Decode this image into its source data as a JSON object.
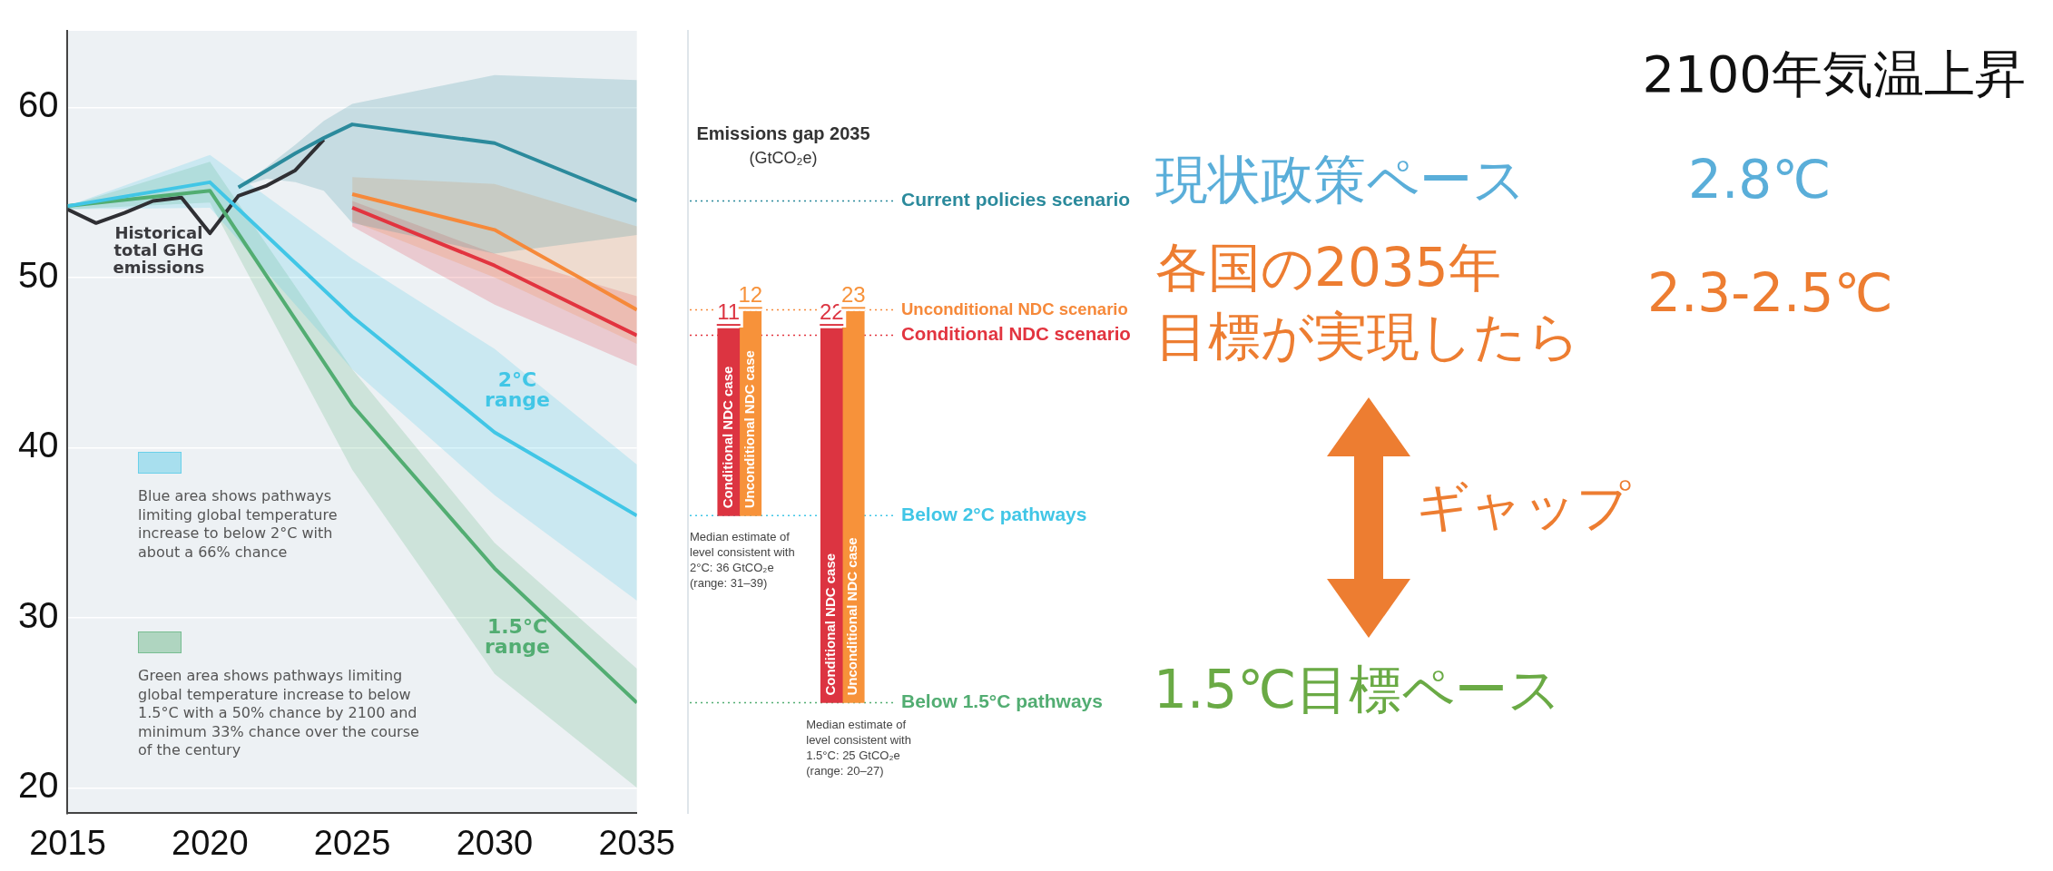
{
  "chart_data": [
    {
      "type": "line",
      "xlim": [
        2015,
        2035
      ],
      "xticks": [
        2015,
        2020,
        2025,
        2030,
        2035
      ],
      "ylim": [
        18.5,
        64.5
      ],
      "yticks": [
        20,
        30,
        40,
        50,
        60
      ],
      "grid": "y",
      "series": [
        {
          "color": "#2b8a9c",
          "x": [
            2021,
            2022,
            2023,
            2024,
            2025,
            2030,
            2035
          ],
          "values": [
            55.3,
            56.3,
            57.3,
            58.2,
            59.0,
            57.9,
            54.5
          ],
          "upper": [
            55.3,
            56.5,
            57.8,
            59.2,
            60.2,
            61.9,
            61.6
          ],
          "lower": [
            55.3,
            55.8,
            55.6,
            55.1,
            53.2,
            51.4,
            52.5
          ]
        },
        {
          "color": "#f6893a",
          "x": [
            2025,
            2030,
            2035
          ],
          "values": [
            54.9,
            52.8,
            48.1
          ],
          "upper": [
            55.9,
            55.5,
            53.0
          ],
          "lower": [
            53.3,
            50.0,
            46.1
          ]
        },
        {
          "color": "#e2343f",
          "x": [
            2025,
            2030,
            2035
          ],
          "values": [
            54.1,
            50.7,
            46.6
          ],
          "upper": [
            54.5,
            51.4,
            48.9
          ],
          "lower": [
            53.0,
            48.4,
            44.8
          ]
        },
        {
          "color": "#41c6e6",
          "x": [
            2015,
            2020,
            2025,
            2030,
            2035
          ],
          "values": [
            54.2,
            55.6,
            47.7,
            40.9,
            36
          ],
          "upper": [
            54.2,
            57.2,
            51.1,
            45.8,
            39
          ],
          "lower": [
            54.0,
            54.1,
            44.6,
            37.2,
            31
          ]
        },
        {
          "color": "#52ad72",
          "x": [
            2015,
            2020,
            2025,
            2030,
            2035
          ],
          "values": [
            54.2,
            55.1,
            42.5,
            32.9,
            25
          ],
          "upper": [
            54.2,
            56.8,
            44.6,
            34.4,
            27
          ],
          "lower": [
            54.0,
            54.4,
            38.7,
            26.7,
            20
          ]
        },
        {
          "color": "#2f2f33",
          "x": [
            2015,
            2016,
            2017,
            2018,
            2019,
            2020,
            2021,
            2022,
            2023,
            2024
          ],
          "values": [
            54.0,
            53.2,
            53.8,
            54.5,
            54.7,
            52.6,
            54.8,
            55.4,
            56.3,
            58.1
          ]
        }
      ],
      "annotations": [
        "Historical\ntotal GHG\nemissions",
        "2°C\nrange",
        "1.5°C\nrange",
        "Blue area shows pathways\nlimiting global temperature\nincrease to below 2°C with\nabout a 66% chance",
        "Green area shows pathways limiting\nglobal temperature increase to below\n1.5°C with a 50% chance by 2100 and\nminimum 33% chance over the course\nof the century"
      ]
    },
    {
      "type": "bar",
      "title": "Emissions gap 2035",
      "subtitle": "(GtCO₂e)",
      "categories": [
        null,
        null
      ],
      "ylim": [
        18.5,
        64.5
      ],
      "tick_labels": false,
      "data_labels": true,
      "series": [
        {
          "name": "Conditional NDC case",
          "color": "#dc3441",
          "values": [
            11,
            22
          ],
          "base": [
            36,
            25
          ]
        },
        {
          "name": "Unconditional NDC case",
          "color": "#f7923a",
          "values": [
            12,
            23
          ],
          "base": [
            36,
            25
          ]
        }
      ],
      "ref_lines": [
        {
          "axis": "y",
          "value": 54.5,
          "label": "Current policies scenario",
          "color": "#2b8a9c",
          "line_style": "dotted"
        },
        {
          "axis": "y",
          "value": 48.1,
          "label": "Unconditional NDC scenario",
          "color": "#f6893a",
          "line_style": "dotted"
        },
        {
          "axis": "y",
          "value": 46.6,
          "label": "Conditional NDC scenario",
          "color": "#e2343f",
          "line_style": "dotted"
        },
        {
          "axis": "y",
          "value": 36,
          "label": "Below 2°C pathways",
          "color": "#41c6e6",
          "line_style": "dotted"
        },
        {
          "axis": "y",
          "value": 25,
          "label": "Below 1.5°C pathways",
          "color": "#52ad72",
          "line_style": "dotted"
        }
      ],
      "annotations": [
        "Median estimate of\nlevel consistent with\n2°C: 36 GtCO₂e\n(range: 31–39)",
        "Median estimate of\nlevel consistent with\n1.5°C: 25 GtCO₂e\n(range: 20–27)"
      ]
    },
    {
      "type": "other",
      "title": "2100年気温上昇",
      "annotations": [
        "現状政策ペース",
        "2.8℃",
        "各国の2035年",
        "目標が実現したら",
        "2.3-2.5℃",
        "ギャップ",
        "1.5℃目標ペース"
      ]
    }
  ]
}
